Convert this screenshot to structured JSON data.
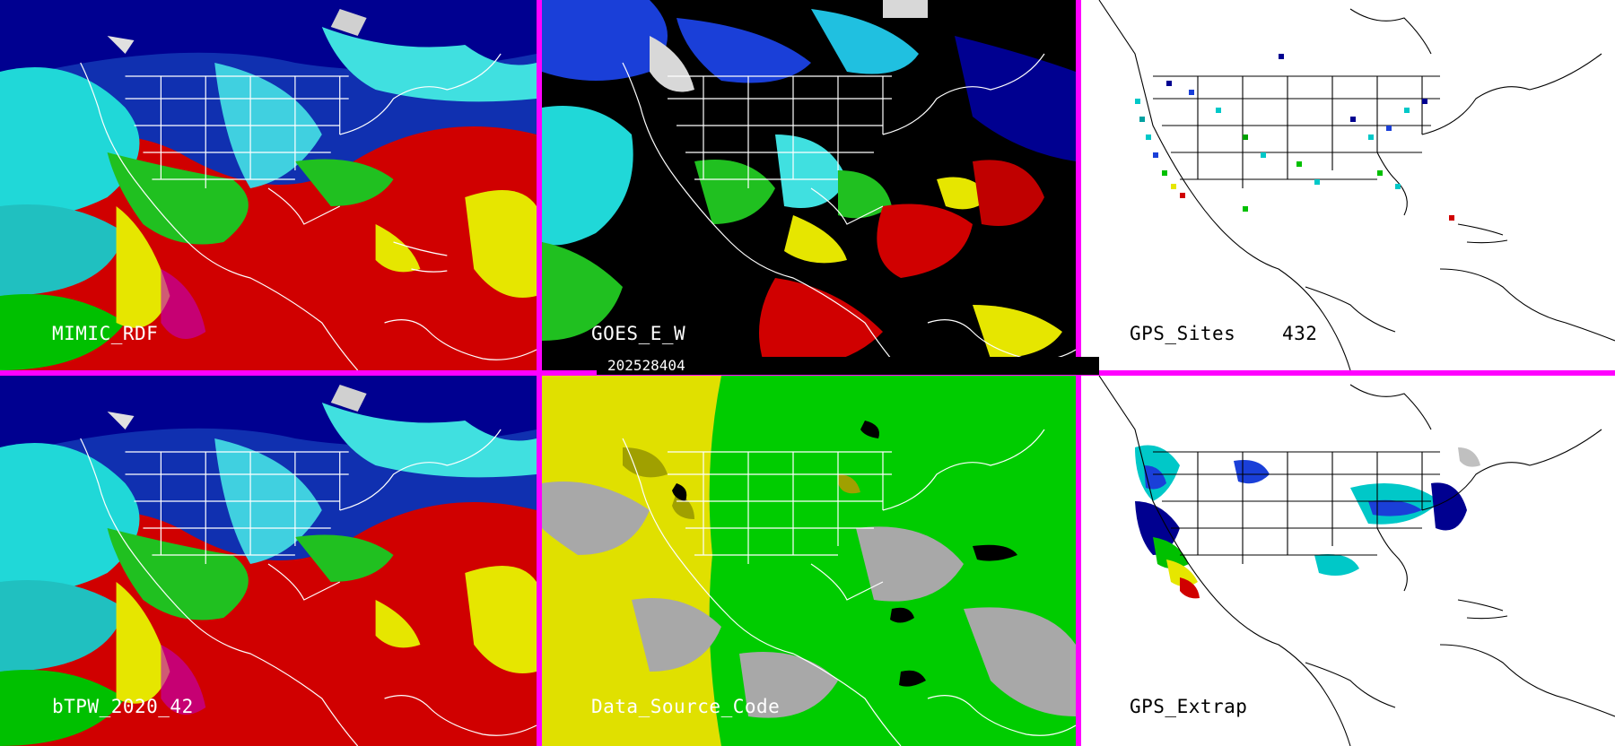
{
  "panels": [
    {
      "id": "p1",
      "label": "MIMIC_RDF"
    },
    {
      "id": "p2",
      "label": "GOES_E_W"
    },
    {
      "id": "p3",
      "label": "GPS_Sites",
      "count": "432"
    },
    {
      "id": "p4",
      "label": "bTPW_2020_42"
    },
    {
      "id": "p5",
      "label": "Data_Source_Code"
    },
    {
      "id": "p6",
      "label": "GPS_Extrap"
    }
  ],
  "timestamp": "202528404",
  "colors": {
    "border": "#ff00ff",
    "tpw_scale": [
      "#000090",
      "#1a3fd8",
      "#00e0e0",
      "#00c800",
      "#e6e600",
      "#d00000",
      "#c000c0",
      "#ffffff"
    ],
    "source_code_scale": [
      "#e0e000",
      "#a0a000",
      "#00cc00",
      "#a8a8a8",
      "#000000"
    ]
  }
}
